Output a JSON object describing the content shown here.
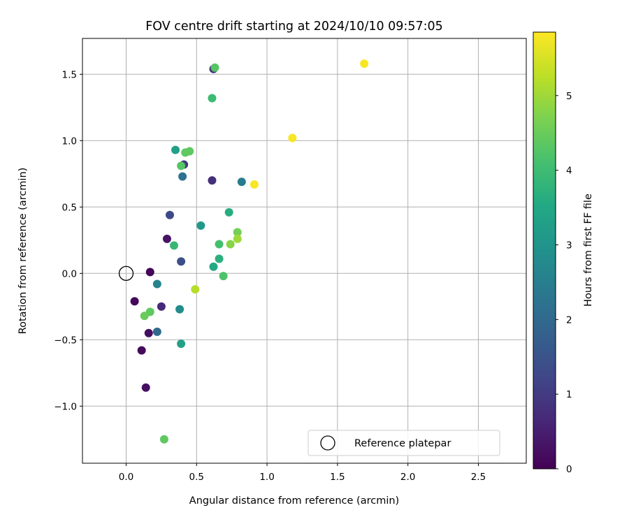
{
  "chart_data": {
    "type": "scatter",
    "title": "FOV centre drift starting at 2024/10/10 09:57:05",
    "xlabel": "Angular distance from reference (arcmin)",
    "ylabel": "Rotation from reference (arcmin)",
    "xlim": [
      -0.31,
      2.84
    ],
    "ylim": [
      -1.43,
      1.77
    ],
    "xticks": [
      0.0,
      0.5,
      1.0,
      1.5,
      2.0,
      2.5
    ],
    "xtick_labels": [
      "0.0",
      "0.5",
      "1.0",
      "1.5",
      "2.0",
      "2.5"
    ],
    "yticks": [
      -1.0,
      -0.5,
      0.0,
      0.5,
      1.0,
      1.5
    ],
    "ytick_labels": [
      "−1.0",
      "−0.5",
      "0.0",
      "0.5",
      "1.0",
      "1.5"
    ],
    "grid": true,
    "legend": {
      "position": "lower-right",
      "entries": [
        "Reference platepar"
      ]
    },
    "reference_point": {
      "x": 0.0,
      "y": 0.0,
      "label": "Reference platepar",
      "marker": "open-circle"
    },
    "colorbar": {
      "label": "Hours from first FF file",
      "colormap": "viridis",
      "range": [
        0,
        5.85
      ],
      "ticks": [
        0,
        1,
        2,
        3,
        4,
        5
      ],
      "tick_labels": [
        "0",
        "1",
        "2",
        "3",
        "4",
        "5"
      ]
    },
    "points": [
      {
        "x": 0.17,
        "y": 0.01,
        "c": 0.05
      },
      {
        "x": 0.06,
        "y": -0.21,
        "c": 0.1
      },
      {
        "x": 0.11,
        "y": -0.58,
        "c": 0.15
      },
      {
        "x": 0.16,
        "y": -0.45,
        "c": 0.2
      },
      {
        "x": 0.14,
        "y": -0.86,
        "c": 0.25
      },
      {
        "x": 0.29,
        "y": 0.26,
        "c": 0.3
      },
      {
        "x": 0.25,
        "y": -0.25,
        "c": 0.7
      },
      {
        "x": 0.61,
        "y": 0.7,
        "c": 0.8
      },
      {
        "x": 0.62,
        "y": 1.54,
        "c": 0.9
      },
      {
        "x": 0.41,
        "y": 0.82,
        "c": 1.0
      },
      {
        "x": 0.31,
        "y": 0.44,
        "c": 1.3
      },
      {
        "x": 0.39,
        "y": 0.09,
        "c": 1.4
      },
      {
        "x": 0.22,
        "y": -0.44,
        "c": 2.0
      },
      {
        "x": 0.4,
        "y": 0.73,
        "c": 2.2
      },
      {
        "x": 0.82,
        "y": 0.69,
        "c": 2.4
      },
      {
        "x": 0.22,
        "y": -0.08,
        "c": 2.6
      },
      {
        "x": 0.38,
        "y": -0.27,
        "c": 2.8
      },
      {
        "x": 0.53,
        "y": 0.36,
        "c": 3.1
      },
      {
        "x": 0.35,
        "y": 0.93,
        "c": 3.3
      },
      {
        "x": 0.39,
        "y": -0.53,
        "c": 3.3
      },
      {
        "x": 0.62,
        "y": 0.05,
        "c": 3.5
      },
      {
        "x": 0.73,
        "y": 0.46,
        "c": 3.6
      },
      {
        "x": 0.66,
        "y": 0.11,
        "c": 3.7
      },
      {
        "x": 0.34,
        "y": 0.21,
        "c": 3.9
      },
      {
        "x": 0.61,
        "y": 1.32,
        "c": 4.0
      },
      {
        "x": 0.66,
        "y": 0.22,
        "c": 4.1
      },
      {
        "x": 0.69,
        "y": -0.02,
        "c": 4.2
      },
      {
        "x": 0.39,
        "y": 0.81,
        "c": 4.3
      },
      {
        "x": 0.63,
        "y": 1.55,
        "c": 4.3
      },
      {
        "x": 0.42,
        "y": 0.91,
        "c": 4.4
      },
      {
        "x": 0.45,
        "y": 0.92,
        "c": 4.4
      },
      {
        "x": 0.17,
        "y": -0.29,
        "c": 4.4
      },
      {
        "x": 0.27,
        "y": -1.25,
        "c": 4.4
      },
      {
        "x": 0.13,
        "y": -0.32,
        "c": 4.5
      },
      {
        "x": 0.79,
        "y": 0.31,
        "c": 4.6
      },
      {
        "x": 0.74,
        "y": 0.22,
        "c": 4.8
      },
      {
        "x": 0.79,
        "y": 0.26,
        "c": 5.0
      },
      {
        "x": 0.49,
        "y": -0.12,
        "c": 5.2
      },
      {
        "x": 0.91,
        "y": 0.67,
        "c": 5.8
      },
      {
        "x": 1.18,
        "y": 1.02,
        "c": 5.8
      },
      {
        "x": 1.69,
        "y": 1.58,
        "c": 5.8
      }
    ]
  },
  "colors": {
    "grid": "#b0b0b0",
    "axes": "#000000",
    "legend_border": "#cccccc"
  }
}
